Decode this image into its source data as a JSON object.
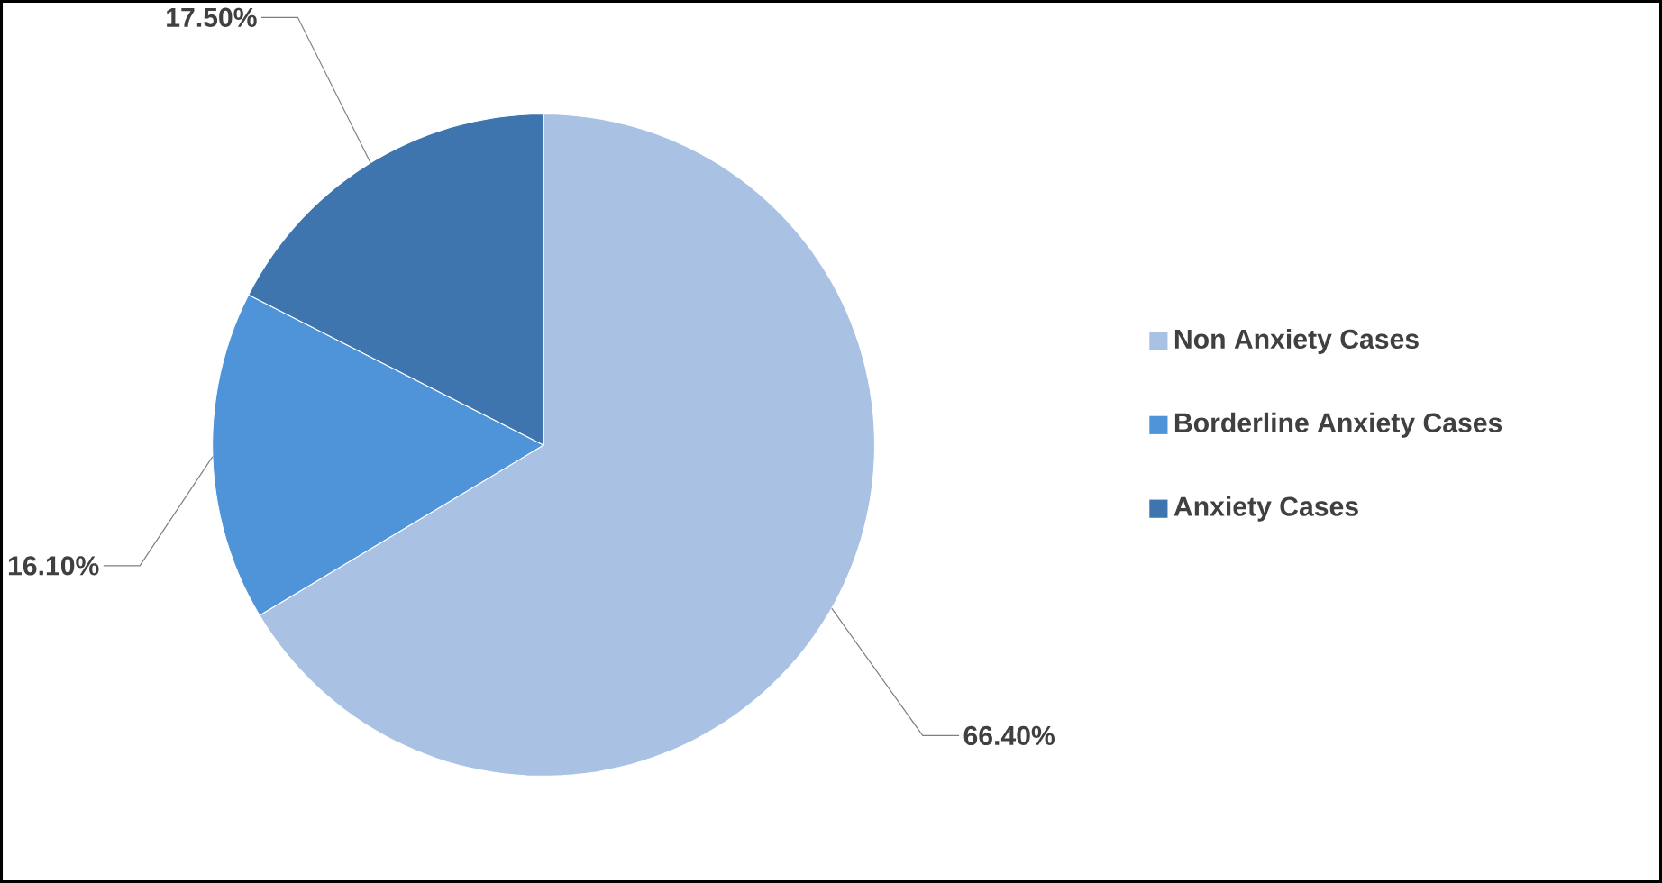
{
  "chart_data": {
    "type": "pie",
    "categories": [
      "Non  Anxiety Cases",
      "Borderline Anxiety Cases",
      "Anxiety Cases"
    ],
    "values": [
      66.4,
      16.1,
      17.5
    ],
    "value_labels": [
      "66.40%",
      "16.10%",
      "17.50%"
    ],
    "colors": [
      "#a9c2e4",
      "#4f94d8",
      "#3e75ae"
    ],
    "legend": "right"
  }
}
